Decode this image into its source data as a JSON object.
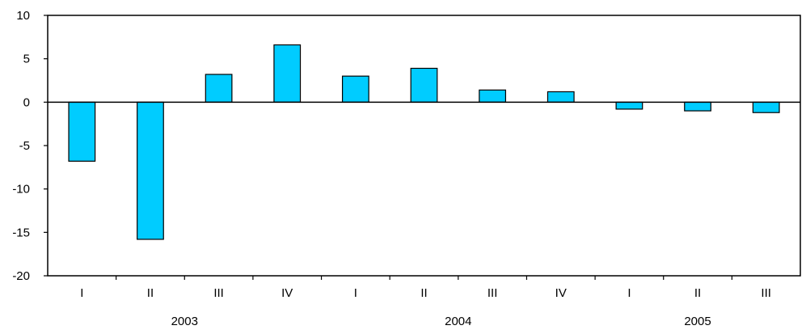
{
  "chart_data": {
    "type": "bar",
    "categories": [
      "I",
      "II",
      "III",
      "IV",
      "I",
      "II",
      "III",
      "IV",
      "I",
      "II",
      "III"
    ],
    "groups": [
      {
        "label": "2003",
        "start": 0,
        "count": 4
      },
      {
        "label": "2004",
        "start": 4,
        "count": 4
      },
      {
        "label": "2005",
        "start": 8,
        "count": 3
      }
    ],
    "values": [
      -6.8,
      -15.8,
      3.2,
      6.6,
      3.0,
      3.9,
      1.4,
      1.2,
      -0.8,
      -1.0,
      -1.2
    ],
    "ylim": [
      -20,
      10
    ],
    "yticks": [
      "10",
      "5",
      "0",
      "-5",
      "-10",
      "-15",
      "-20"
    ],
    "title": "",
    "xlabel": "",
    "ylabel": "",
    "grid": false,
    "bar_color": "#00ccff",
    "bar_stroke": "#000000"
  }
}
